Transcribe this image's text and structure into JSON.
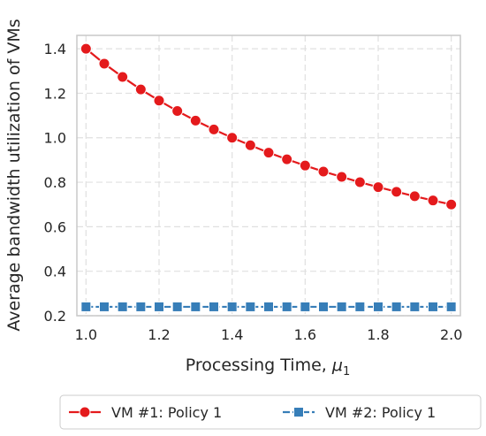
{
  "chart_data": {
    "type": "line",
    "xlabel": "Processing Time, ",
    "xlabel_symbol": "μ",
    "xlabel_subscript": "1",
    "ylabel": "Average bandwidth utilization of VMs",
    "xlim": [
      0.975,
      2.025
    ],
    "ylim": [
      0.2,
      1.46
    ],
    "xticks": [
      "1.0",
      "1.2",
      "1.4",
      "1.6",
      "1.8",
      "2.0"
    ],
    "yticks": [
      "0.2",
      "0.4",
      "0.6",
      "0.8",
      "1.0",
      "1.2",
      "1.4"
    ],
    "grid": true,
    "legend_position": "bottom",
    "x": [
      1.0,
      1.05,
      1.1,
      1.15,
      1.2,
      1.25,
      1.3,
      1.35,
      1.4,
      1.45,
      1.5,
      1.55,
      1.6,
      1.65,
      1.7,
      1.75,
      1.8,
      1.85,
      1.9,
      1.95,
      2.0
    ],
    "series": [
      {
        "name": "VM #1: Policy 1",
        "color": "#e41a1c",
        "marker": "circle",
        "line_style": "solid",
        "values": [
          1.4,
          1.333,
          1.273,
          1.217,
          1.167,
          1.12,
          1.077,
          1.037,
          1.0,
          0.966,
          0.933,
          0.903,
          0.875,
          0.848,
          0.824,
          0.8,
          0.778,
          0.757,
          0.737,
          0.718,
          0.7
        ]
      },
      {
        "name": "VM #2: Policy 1",
        "color": "#377eb8",
        "marker": "square",
        "line_style": "dashed",
        "values": [
          0.24,
          0.24,
          0.24,
          0.24,
          0.24,
          0.24,
          0.24,
          0.24,
          0.24,
          0.24,
          0.24,
          0.24,
          0.24,
          0.24,
          0.24,
          0.24,
          0.24,
          0.24,
          0.24,
          0.24,
          0.24
        ]
      }
    ]
  }
}
